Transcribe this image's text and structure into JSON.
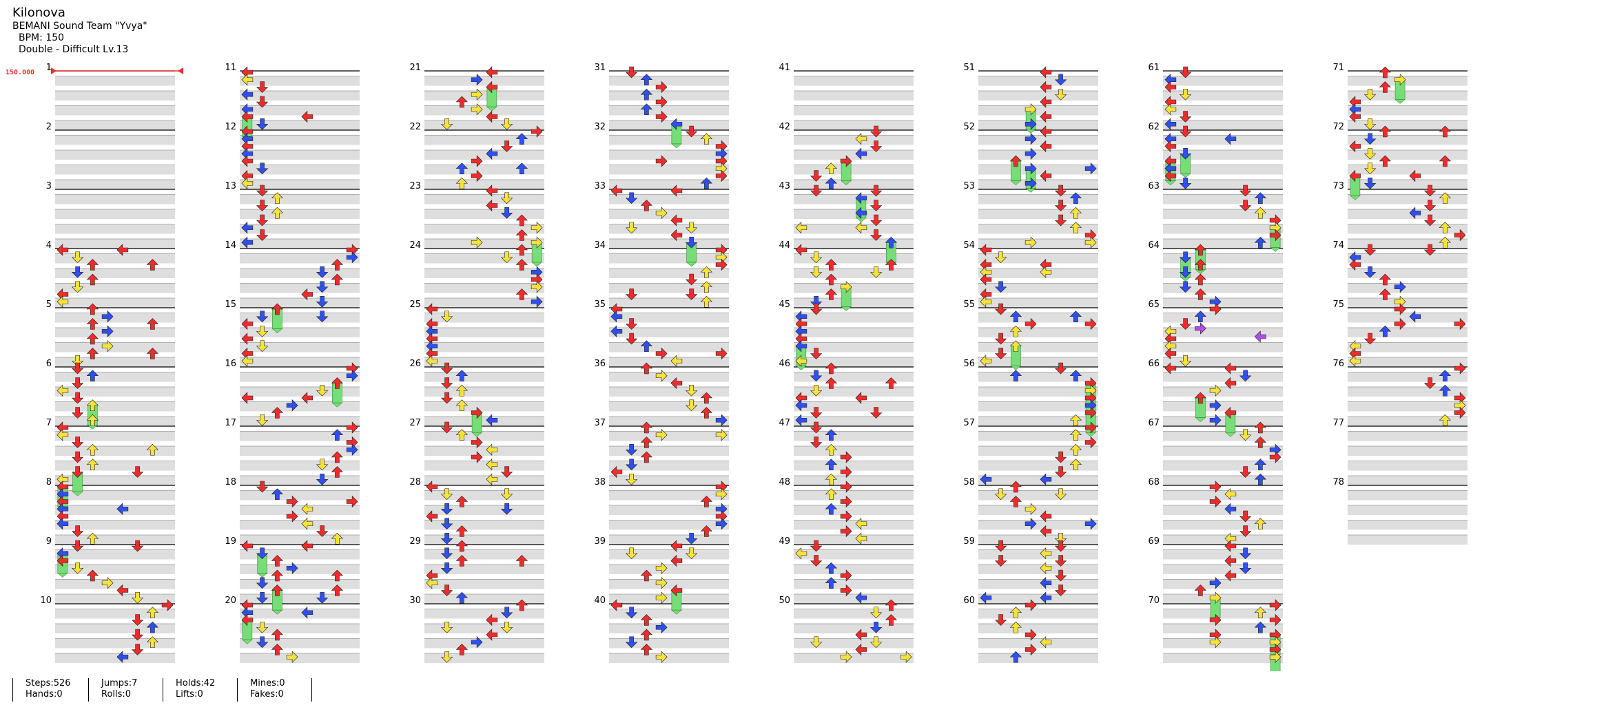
{
  "song": {
    "title": "Kilonova",
    "artist": "BEMANI Sound Team \"Yvya\"",
    "bpm_label": "BPM: 150",
    "chart_label": "Double - Difficult  Lv.13",
    "bpm_marker": "150.000"
  },
  "measure_numbers": [
    "1",
    "2",
    "3",
    "4",
    "5",
    "6",
    "7",
    "8",
    "9",
    "10",
    "11",
    "12",
    "13",
    "14",
    "15",
    "16",
    "17",
    "18",
    "19",
    "20",
    "21",
    "22",
    "23",
    "24",
    "25",
    "26",
    "27",
    "28",
    "29",
    "30",
    "31",
    "32",
    "33",
    "34",
    "35",
    "36",
    "37",
    "38",
    "39",
    "40",
    "41",
    "42",
    "43",
    "44",
    "45",
    "46",
    "47",
    "48",
    "49",
    "50",
    "51",
    "52",
    "53",
    "54",
    "55",
    "56",
    "57",
    "58",
    "59",
    "60",
    "61",
    "62",
    "63",
    "64",
    "65",
    "66",
    "67",
    "68",
    "69",
    "70",
    "71",
    "72",
    "73",
    "74",
    "75",
    "76",
    "77",
    "78"
  ],
  "colors": {
    "quarter": "#ee2c2c",
    "eighth": "#2f4fee",
    "sixteenth": "#f5e23a",
    "hold": "#77dd77",
    "mine": "#b04fe8",
    "stripe": "#dedede",
    "beat_line": "#9a9a9a"
  },
  "notes_summary": "Arrow note icons: left/down/up/right, colored by rhythm (red quarter, blue eighth, yellow sixteenth), green freeze holds, purple mines",
  "stats": {
    "steps": "Steps:526",
    "hands": "Hands:0",
    "jumps": "Jumps:7",
    "rolls": "Rolls:0",
    "holds": "Holds:42",
    "lifts": "Lifts:0",
    "mines": "Mines:0",
    "fakes": "Fakes:0"
  }
}
